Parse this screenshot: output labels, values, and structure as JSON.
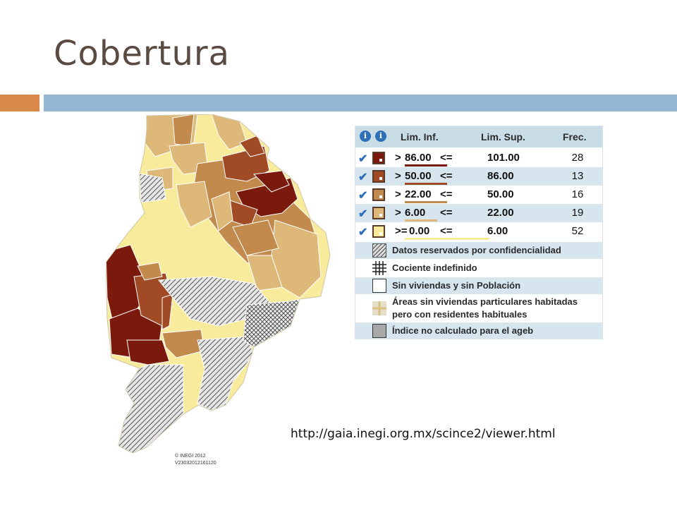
{
  "slide": {
    "title": "Cobertura",
    "source_url": "http://gaia.inegi.org.mx/scince2/viewer.html"
  },
  "map": {
    "copyright": "© INEGI 2012",
    "version": "V23032012161120",
    "colors": {
      "class_1": "#7b1a0c",
      "class_2": "#a04a26",
      "class_3": "#c28a4c",
      "class_4": "#ddb878",
      "class_5": "#f8eb9c",
      "reserved": "#b5b5b5",
      "boundary": "#ffffff"
    }
  },
  "legend": {
    "headers": {
      "lower": "Lim. Inf.",
      "upper": "Lim. Sup.",
      "freq": "Frec."
    },
    "info_icons": [
      "info-icon",
      "info-icon"
    ],
    "classes": [
      {
        "cmp1": ">",
        "lower": "86.00",
        "cmp2": "<=",
        "upper": "101.00",
        "freq": "28",
        "color": "#7b1a0c",
        "checked": true
      },
      {
        "cmp1": ">",
        "lower": "50.00",
        "cmp2": "<=",
        "upper": "86.00",
        "freq": "13",
        "color": "#a04a26",
        "checked": true
      },
      {
        "cmp1": ">",
        "lower": "22.00",
        "cmp2": "<=",
        "upper": "50.00",
        "freq": "16",
        "color": "#c28a4c",
        "checked": true
      },
      {
        "cmp1": ">",
        "lower": "6.00",
        "cmp2": "<=",
        "upper": "22.00",
        "freq": "19",
        "color": "#ddb878",
        "checked": true
      },
      {
        "cmp1": ">=",
        "lower": "0.00",
        "cmp2": "<=",
        "upper": "6.00",
        "freq": "52",
        "color": "#f8eb9c",
        "checked": true
      }
    ],
    "special": [
      {
        "label": "Datos reservados por confidencialidad",
        "pattern": "hatch"
      },
      {
        "label": "Cociente indefinido",
        "pattern": "grid"
      },
      {
        "label": "Sin viviendas y sin Población",
        "pattern": "empty"
      },
      {
        "label": "Áreas sin viviendas particulares habitadas",
        "label2": "pero con residentes habituales",
        "pattern": "cross"
      },
      {
        "label": "Índice no calculado para el ageb",
        "pattern": "gray"
      }
    ]
  }
}
